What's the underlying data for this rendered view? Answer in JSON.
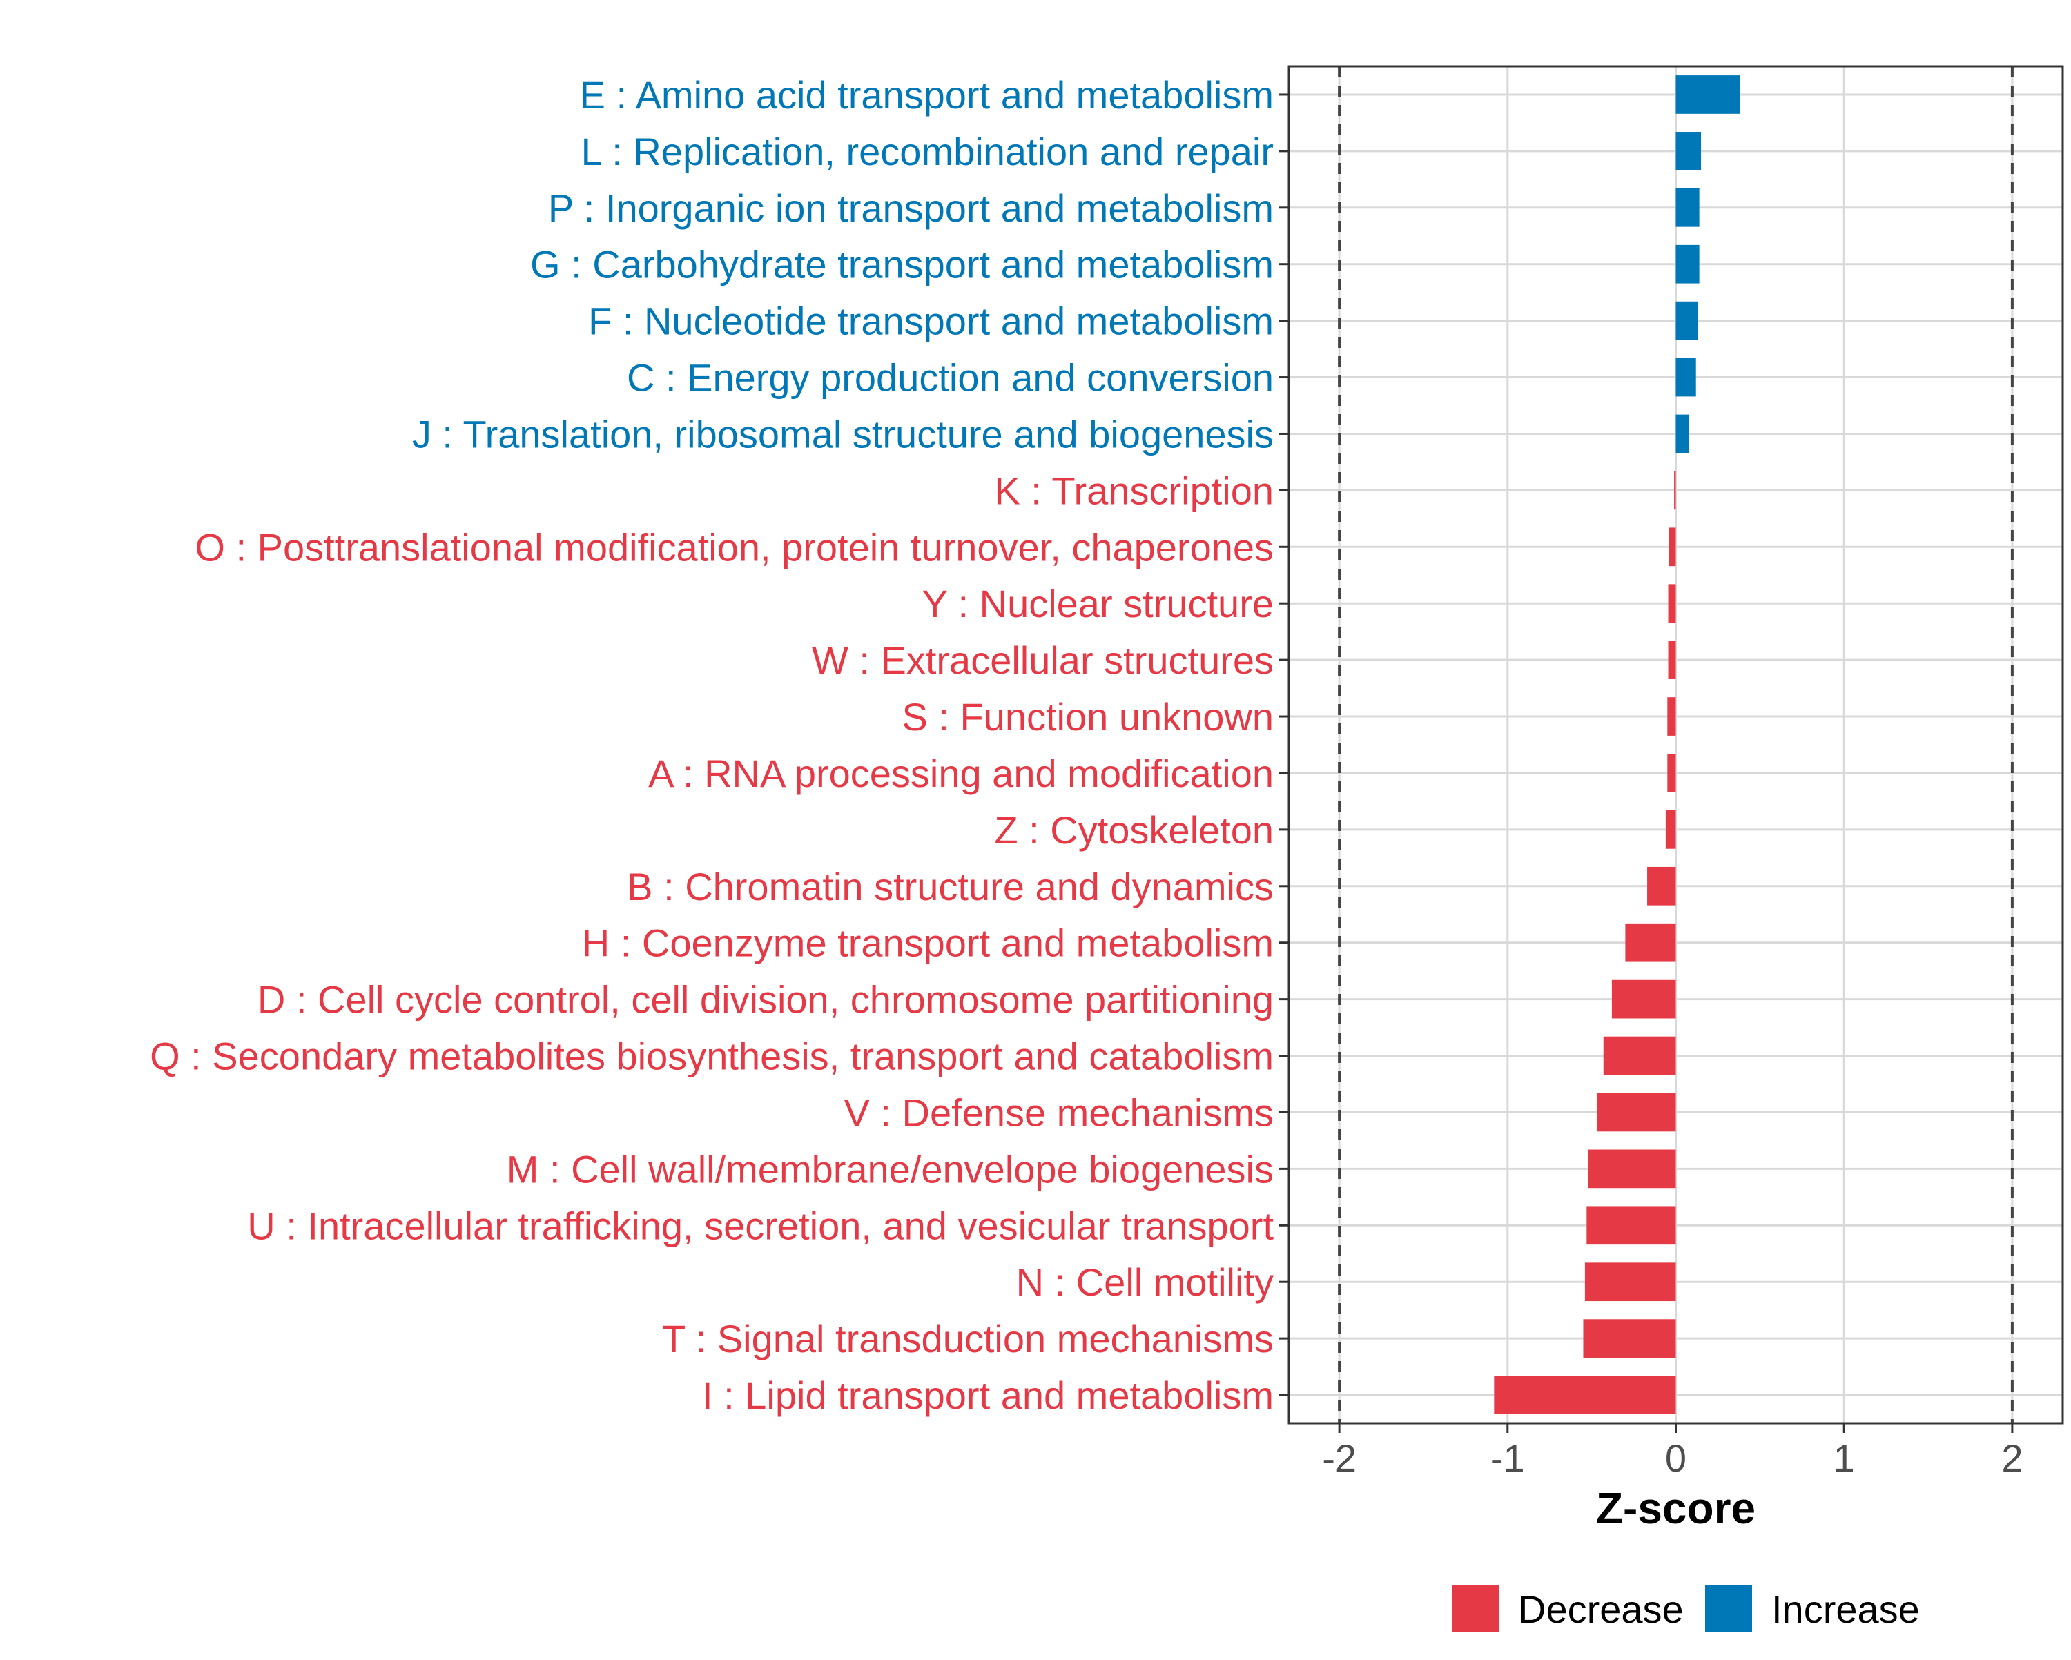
{
  "chart_data": {
    "type": "bar",
    "orientation": "horizontal",
    "title": "",
    "xlabel": "Z-score",
    "ylabel": "",
    "xlim": [
      -2.3,
      2.3
    ],
    "xticks": [
      -2,
      -1,
      0,
      1,
      2
    ],
    "xtick_labels": [
      "-2",
      "-1",
      "0",
      "1",
      "2"
    ],
    "threshold_lines": [
      -2,
      2
    ],
    "grid": true,
    "categories": [
      "E : Amino acid transport and metabolism",
      "L : Replication, recombination and repair",
      "P : Inorganic ion transport and metabolism",
      "G : Carbohydrate transport and metabolism",
      "F : Nucleotide transport and metabolism",
      "C : Energy production and conversion",
      "J : Translation, ribosomal structure and biogenesis",
      "K : Transcription",
      "O : Posttranslational modification, protein turnover, chaperones",
      "Y : Nuclear structure",
      "W : Extracellular structures",
      "S : Function unknown",
      "A : RNA processing and modification",
      "Z : Cytoskeleton",
      "B : Chromatin structure and dynamics",
      "H : Coenzyme transport and metabolism",
      "D : Cell cycle control, cell division, chromosome partitioning",
      "Q : Secondary metabolites biosynthesis, transport and catabolism",
      "V : Defense mechanisms",
      "M : Cell wall/membrane/envelope biogenesis",
      "U : Intracellular trafficking, secretion, and vesicular transport",
      "N : Cell motility",
      "T : Signal transduction mechanisms",
      "I : Lipid transport and metabolism"
    ],
    "values": [
      0.38,
      0.15,
      0.14,
      0.14,
      0.13,
      0.12,
      0.08,
      -0.01,
      -0.04,
      -0.045,
      -0.045,
      -0.05,
      -0.05,
      -0.06,
      -0.17,
      -0.3,
      -0.38,
      -0.43,
      -0.47,
      -0.52,
      -0.53,
      -0.54,
      -0.55,
      -1.08
    ],
    "groups": [
      "Increase",
      "Increase",
      "Increase",
      "Increase",
      "Increase",
      "Increase",
      "Increase",
      "Decrease",
      "Decrease",
      "Decrease",
      "Decrease",
      "Decrease",
      "Decrease",
      "Decrease",
      "Decrease",
      "Decrease",
      "Decrease",
      "Decrease",
      "Decrease",
      "Decrease",
      "Decrease",
      "Decrease",
      "Decrease",
      "Decrease"
    ],
    "legend": {
      "position": "bottom",
      "entries": [
        {
          "label": "Decrease",
          "color": "#E63946"
        },
        {
          "label": "Increase",
          "color": "#0077B6"
        }
      ]
    },
    "colors": {
      "Decrease": "#E63946",
      "Increase": "#0077B6",
      "grid": "#D9D9D9",
      "axis": "#333333",
      "threshold": "#444444",
      "tick_text": "#4D4D4D",
      "axis_title": "#000000"
    }
  }
}
